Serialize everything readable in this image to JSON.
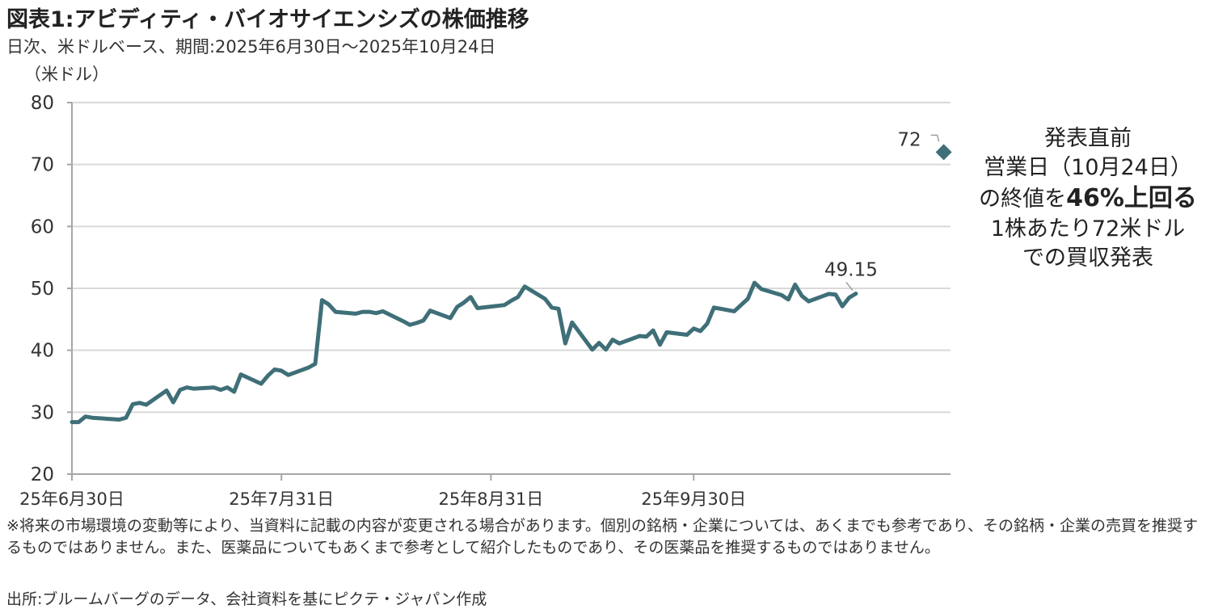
{
  "header": {
    "title": "図表1:アビディティ・バイオサイエンシズの株価推移",
    "subtitle": "日次、米ドルベース、期間:2025年6月30日～2025年10月24日",
    "unit": "（米ドル）"
  },
  "annotation": {
    "line1": "発表直前",
    "line2": "営業日（10月24日）",
    "line3_a": "の終値を",
    "line3_b": "46%上回る",
    "line4": "1株あたり72米ドル",
    "line5": "での買収発表"
  },
  "footnote": {
    "text": "※将来の市場環境の変動等により、当資料に記載の内容が変更される場合があります。個別の銘柄・企業については、あくまでも参考であり、その銘柄・企業の売買を推奨するものではありません。また、医薬品についてもあくまで参考として紹介したものであり、その医薬品を推奨するものではありません。",
    "source": "出所:ブルームバーグのデータ、会社資料を基にピクテ・ジャパン作成"
  },
  "colors": {
    "line": "#3f6f78",
    "grid": "#d9d9d9",
    "axis": "#a6a6a6",
    "text": "#333333"
  },
  "chart_data": {
    "type": "line",
    "ylim": [
      20,
      80
    ],
    "yticks": [
      20,
      30,
      40,
      50,
      60,
      70,
      80
    ],
    "xlim": [
      "2025-06-30",
      "2025-11-07"
    ],
    "xticks": [
      "2025-06-30",
      "2025-07-31",
      "2025-08-31",
      "2025-09-30"
    ],
    "xtick_labels": [
      "25年6月30日",
      "25年7月31日",
      "25年8月31日",
      "25年9月30日"
    ],
    "grid": true,
    "series": [
      {
        "x": [
          "2025-06-30",
          "2025-07-01",
          "2025-07-02",
          "2025-07-03",
          "2025-07-07",
          "2025-07-08",
          "2025-07-09",
          "2025-07-10",
          "2025-07-11",
          "2025-07-14",
          "2025-07-15",
          "2025-07-16",
          "2025-07-17",
          "2025-07-18",
          "2025-07-21",
          "2025-07-22",
          "2025-07-23",
          "2025-07-24",
          "2025-07-25",
          "2025-07-28",
          "2025-07-29",
          "2025-07-30",
          "2025-07-31",
          "2025-08-01",
          "2025-08-04",
          "2025-08-05",
          "2025-08-06",
          "2025-08-07",
          "2025-08-08",
          "2025-08-11",
          "2025-08-12",
          "2025-08-13",
          "2025-08-14",
          "2025-08-15",
          "2025-08-18",
          "2025-08-19",
          "2025-08-20",
          "2025-08-21",
          "2025-08-22",
          "2025-08-25",
          "2025-08-26",
          "2025-08-27",
          "2025-08-28",
          "2025-08-29",
          "2025-09-02",
          "2025-09-03",
          "2025-09-04",
          "2025-09-05",
          "2025-09-08",
          "2025-09-09",
          "2025-09-10",
          "2025-09-11",
          "2025-09-12",
          "2025-09-15",
          "2025-09-16",
          "2025-09-17",
          "2025-09-18",
          "2025-09-19",
          "2025-09-22",
          "2025-09-23",
          "2025-09-24",
          "2025-09-25",
          "2025-09-26",
          "2025-09-29",
          "2025-09-30",
          "2025-10-01",
          "2025-10-02",
          "2025-10-03",
          "2025-10-06",
          "2025-10-07",
          "2025-10-08",
          "2025-10-09",
          "2025-10-10",
          "2025-10-13",
          "2025-10-14",
          "2025-10-15",
          "2025-10-16",
          "2025-10-17",
          "2025-10-20",
          "2025-10-21",
          "2025-10-22",
          "2025-10-23",
          "2025-10-24"
        ],
        "values": [
          28.4,
          28.4,
          29.3,
          29.1,
          28.8,
          29.1,
          31.3,
          31.5,
          31.2,
          33.5,
          31.6,
          33.6,
          34.0,
          33.8,
          34.0,
          33.6,
          34.0,
          33.3,
          36.1,
          34.6,
          35.9,
          36.9,
          36.7,
          36.0,
          37.2,
          37.8,
          48.1,
          47.4,
          46.2,
          45.9,
          46.2,
          46.2,
          46.0,
          46.3,
          44.7,
          44.1,
          44.4,
          44.8,
          46.4,
          45.2,
          47.0,
          47.7,
          48.6,
          46.8,
          47.3,
          48.0,
          48.6,
          50.3,
          48.3,
          46.9,
          46.7,
          41.1,
          44.5,
          40.1,
          41.2,
          40.1,
          41.7,
          41.1,
          42.3,
          42.2,
          43.2,
          40.9,
          42.9,
          42.5,
          43.5,
          43.1,
          44.3,
          46.9,
          46.3,
          47.3,
          48.3,
          50.9,
          49.9,
          48.9,
          48.2,
          50.6,
          48.8,
          47.9,
          49.1,
          49.0,
          47.1,
          48.5,
          49.15
        ]
      }
    ],
    "points": [
      {
        "x": "2025-10-24",
        "y": 49.15,
        "label": "49.15"
      },
      {
        "x": "2025-11-06",
        "y": 72,
        "label": "72",
        "marker": "diamond"
      }
    ]
  }
}
